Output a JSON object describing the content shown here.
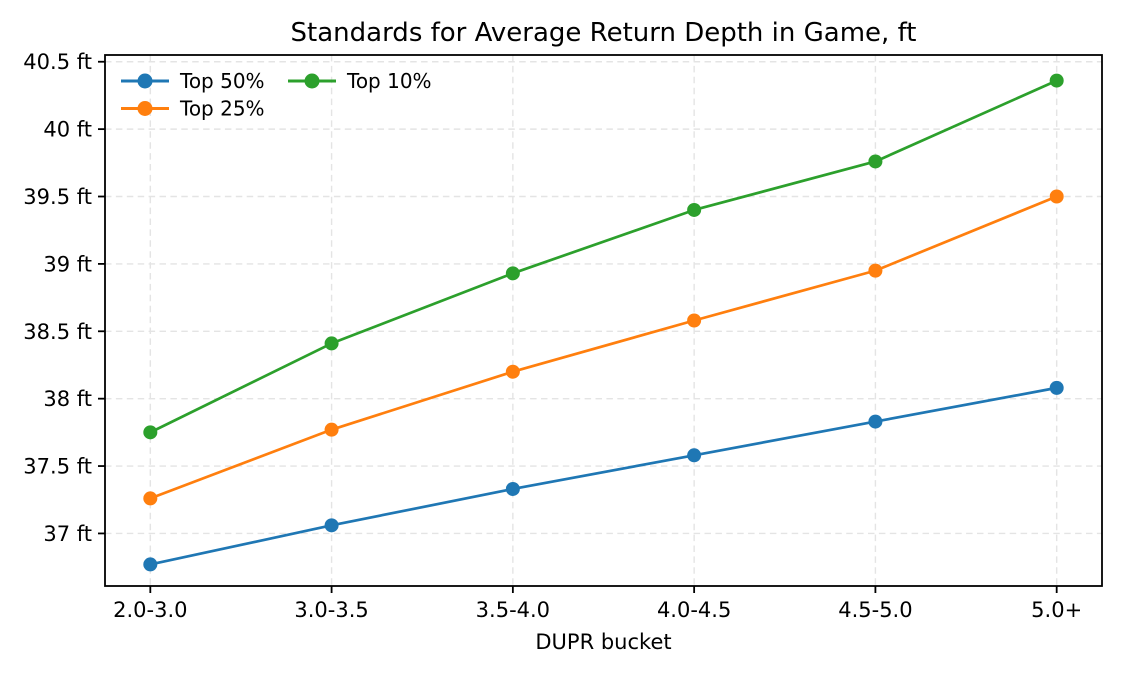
{
  "figure": {
    "title": "Standards for Average Return Depth in Game, ft",
    "xlabel": "DUPR bucket"
  },
  "chart_data": {
    "type": "line",
    "title": "Standards for Average Return Depth in Game, ft",
    "xlabel": "DUPR bucket",
    "ylabel": "",
    "categories": [
      "2.0-3.0",
      "3.0-3.5",
      "3.5-4.0",
      "4.0-4.5",
      "4.5-5.0",
      "5.0+"
    ],
    "series": [
      {
        "name": "Top 50%",
        "color": "#1f77b4",
        "values": [
          36.77,
          37.06,
          37.33,
          37.58,
          37.83,
          38.08
        ]
      },
      {
        "name": "Top 25%",
        "color": "#ff7f0e",
        "values": [
          37.26,
          37.77,
          38.2,
          38.58,
          38.95,
          39.5
        ]
      },
      {
        "name": "Top 10%",
        "color": "#2ca02c",
        "values": [
          37.75,
          38.41,
          38.93,
          39.4,
          39.76,
          40.36
        ]
      }
    ],
    "yticks": [
      37,
      37.5,
      38,
      38.5,
      39,
      39.5,
      40,
      40.5
    ],
    "ytick_labels": [
      "37 ft",
      "37.5 ft",
      "38 ft",
      "38.5 ft",
      "39 ft",
      "39.5 ft",
      "40 ft",
      "40.5 ft"
    ],
    "ylim": [
      36.61,
      40.55
    ],
    "grid": true,
    "marker": "circle",
    "legend": {
      "position": "upper left",
      "columns": 2,
      "entries": [
        "Top 50%",
        "Top 25%",
        "Top 10%"
      ]
    },
    "colors": {
      "axis": "#000000",
      "grid": "#e4e4e4",
      "background": "#ffffff",
      "text": "#000000"
    }
  }
}
